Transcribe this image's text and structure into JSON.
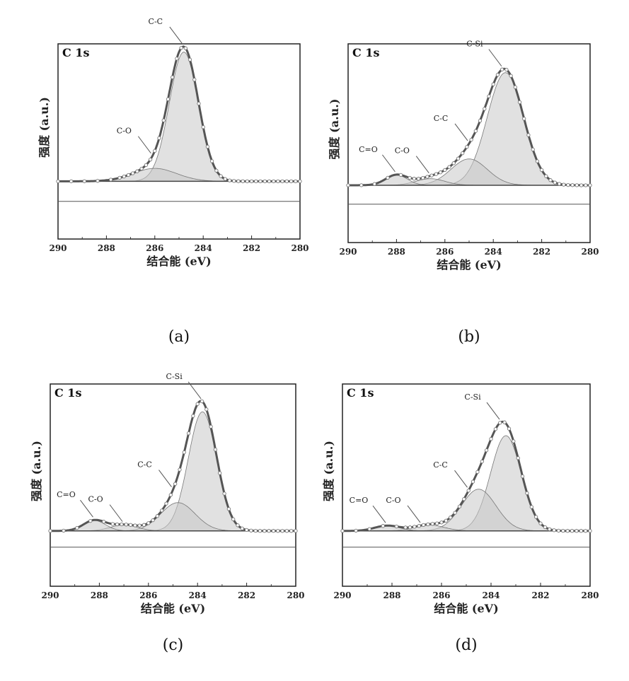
{
  "chart_data": [
    {
      "panel": "(a)",
      "type": "line",
      "title": "C 1s",
      "xlabel": "结合能 (eV)",
      "ylabel": "强度 (a.u.)",
      "xlim": [
        290,
        280
      ],
      "x_reversed": true,
      "xticks": [
        290,
        288,
        286,
        284,
        282,
        280
      ],
      "y_ticks_shown": false,
      "baseline": 0.13,
      "components": [
        {
          "name": "C-C",
          "center": 284.8,
          "height": 0.9,
          "sigma": 0.6
        },
        {
          "name": "C-O",
          "center": 286.0,
          "height": 0.09,
          "sigma": 0.9
        }
      ],
      "annotations": [
        {
          "text": "C-C",
          "x": 284.8
        },
        {
          "text": "C-O",
          "x": 286.1
        }
      ],
      "caption": "(a)"
    },
    {
      "panel": "(b)",
      "type": "line",
      "title": "C 1s",
      "xlabel": "结合能 (eV)",
      "ylabel": "强度 (a.u.)",
      "xlim": [
        290,
        280
      ],
      "x_reversed": true,
      "xticks": [
        290,
        288,
        286,
        284,
        282,
        280
      ],
      "y_ticks_shown": false,
      "baseline": 0.12,
      "components": [
        {
          "name": "C-Si",
          "center": 283.5,
          "height": 0.77,
          "sigma": 0.75
        },
        {
          "name": "C-C",
          "center": 285.0,
          "height": 0.18,
          "sigma": 0.75
        },
        {
          "name": "C-O",
          "center": 286.6,
          "height": 0.045,
          "sigma": 0.6
        },
        {
          "name": "C=O",
          "center": 288.0,
          "height": 0.07,
          "sigma": 0.45
        }
      ],
      "annotations": [
        {
          "text": "C-Si",
          "x": 283.6
        },
        {
          "text": "C-C",
          "x": 285.0
        },
        {
          "text": "C-O",
          "x": 286.6
        },
        {
          "text": "C=O",
          "x": 288.0
        }
      ],
      "caption": "(b)"
    },
    {
      "panel": "(c)",
      "type": "line",
      "title": "C 1s",
      "xlabel": "结合能 (eV)",
      "ylabel": "强度 (a.u.)",
      "xlim": [
        290,
        280
      ],
      "x_reversed": true,
      "xticks": [
        290,
        288,
        286,
        284,
        282,
        280
      ],
      "y_ticks_shown": false,
      "baseline": 0.1,
      "components": [
        {
          "name": "C-Si",
          "center": 283.8,
          "height": 0.8,
          "sigma": 0.58
        },
        {
          "name": "C-C",
          "center": 284.8,
          "height": 0.19,
          "sigma": 0.7
        },
        {
          "name": "C-O",
          "center": 287.0,
          "height": 0.04,
          "sigma": 0.55
        },
        {
          "name": "C=O",
          "center": 288.2,
          "height": 0.07,
          "sigma": 0.45
        }
      ],
      "annotations": [
        {
          "text": "C-Si",
          "x": 283.8
        },
        {
          "text": "C-C",
          "x": 285.0
        },
        {
          "text": "C-O",
          "x": 287.0
        },
        {
          "text": "C=O",
          "x": 288.2
        }
      ],
      "caption": "(c)"
    },
    {
      "panel": "(d)",
      "type": "line",
      "title": "C 1s",
      "xlabel": "结合能 (eV)",
      "ylabel": "强度 (a.u.)",
      "xlim": [
        290,
        280
      ],
      "x_reversed": true,
      "xticks": [
        290,
        288,
        286,
        284,
        282,
        280
      ],
      "y_ticks_shown": false,
      "baseline": 0.1,
      "components": [
        {
          "name": "C-Si",
          "center": 283.4,
          "height": 0.64,
          "sigma": 0.62
        },
        {
          "name": "C-C",
          "center": 284.5,
          "height": 0.28,
          "sigma": 0.7
        },
        {
          "name": "C-O",
          "center": 286.5,
          "height": 0.04,
          "sigma": 0.6
        },
        {
          "name": "C=O",
          "center": 288.2,
          "height": 0.035,
          "sigma": 0.5
        }
      ],
      "annotations": [
        {
          "text": "C-Si",
          "x": 283.6
        },
        {
          "text": "C-C",
          "x": 284.9
        },
        {
          "text": "C-O",
          "x": 286.8
        },
        {
          "text": "C=O",
          "x": 288.2
        }
      ],
      "caption": "(d)"
    }
  ],
  "colors": {
    "envelope": "#555555",
    "fill": "#c8c8c8",
    "baseline": "#444444",
    "markers": "#777777"
  }
}
